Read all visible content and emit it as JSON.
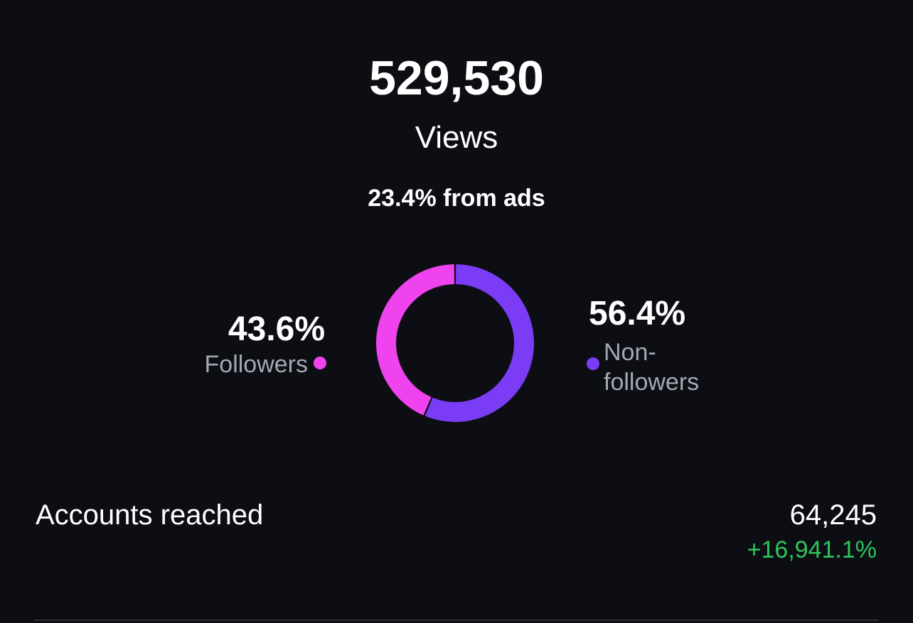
{
  "header": {
    "value": "529,530",
    "label": "Views",
    "ads_note": "23.4% from ads"
  },
  "chart_data": {
    "type": "donut",
    "categories": [
      "Followers",
      "Non-followers"
    ],
    "values": [
      43.6,
      56.4
    ],
    "value_labels": [
      "43.6%",
      "56.4%"
    ],
    "colors": [
      "#f043f0",
      "#7a3cf5"
    ]
  },
  "accounts_reached": {
    "label": "Accounts reached",
    "value": "64,245",
    "change": "+16,941.1%"
  }
}
